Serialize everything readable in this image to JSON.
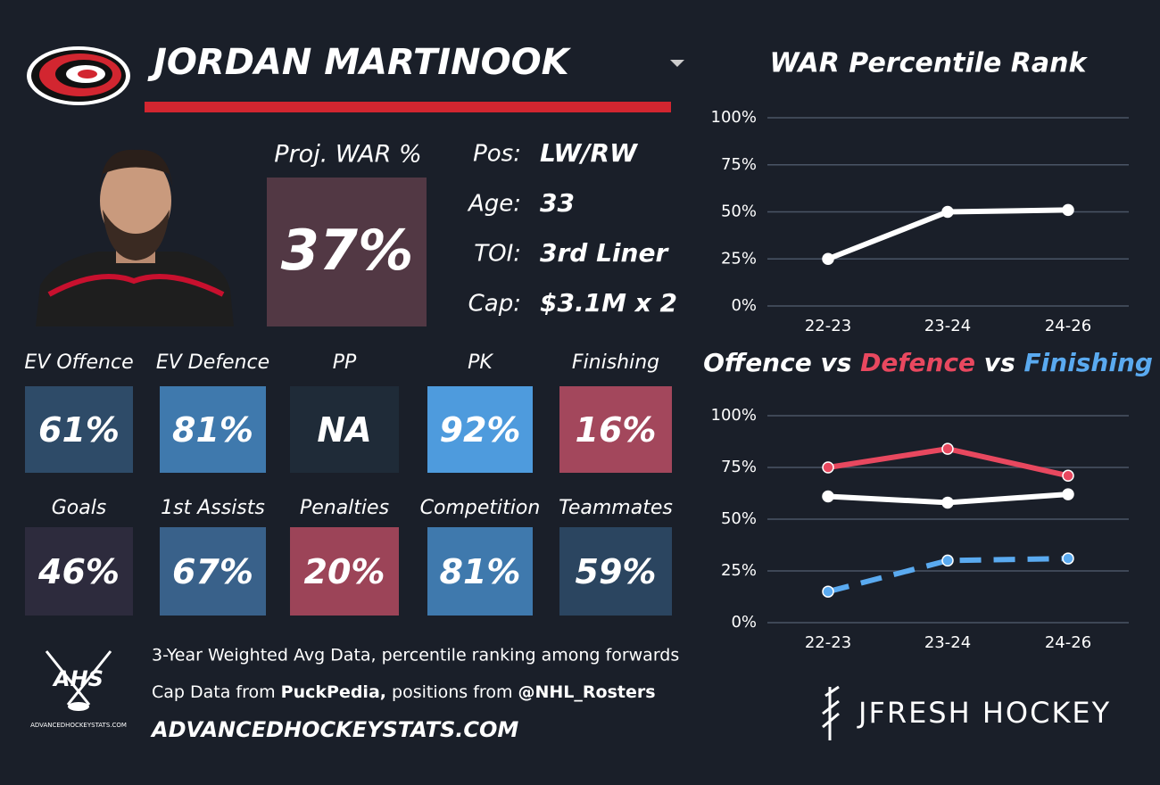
{
  "header": {
    "name": "JORDAN MARTINOOK"
  },
  "summary": {
    "proj_war_label": "Proj. WAR %",
    "proj_war": "37%",
    "proj_war_color": "#523844"
  },
  "info": [
    {
      "label": "Pos:",
      "value": "LW/RW"
    },
    {
      "label": "Age:",
      "value": "33"
    },
    {
      "label": "TOI:",
      "value": "3rd Liner"
    },
    {
      "label": "Cap:",
      "value": "$3.1M x 2"
    }
  ],
  "tiles": [
    {
      "label": "EV Offence",
      "value": "61%",
      "color": "#2e4b68"
    },
    {
      "label": "EV Defence",
      "value": "81%",
      "color": "#3f79ad"
    },
    {
      "label": "PP",
      "value": "NA",
      "color": "#1f2b38"
    },
    {
      "label": "PK",
      "value": "92%",
      "color": "#4e9bdd"
    },
    {
      "label": "Finishing",
      "value": "16%",
      "color": "#a3475c"
    },
    {
      "label": "Goals",
      "value": "46%",
      "color": "#2d2b3d"
    },
    {
      "label": "1st Assists",
      "value": "67%",
      "color": "#39618a"
    },
    {
      "label": "Penalties",
      "value": "20%",
      "color": "#9c4458"
    },
    {
      "label": "Competition",
      "value": "81%",
      "color": "#3f79ad"
    },
    {
      "label": "Teammates",
      "value": "59%",
      "color": "#2b4560"
    }
  ],
  "footer": {
    "line1": "3-Year Weighted Avg Data, percentile ranking among forwards",
    "line2": [
      "Cap Data from ",
      "PuckPedia,",
      " positions from ",
      "@NHL_Rosters"
    ],
    "website": "ADVANCEDHOCKEYSTATS.COM",
    "ahs_logo": "AHS",
    "ahs_caption": "ADVANCEDHOCKEYSTATS.COM",
    "brand": "JFRESH HOCKEY"
  },
  "chart_data": [
    {
      "type": "line",
      "title": "WAR Percentile Rank",
      "categories": [
        "22-23",
        "23-24",
        "24-26"
      ],
      "values": [
        25,
        50,
        51
      ],
      "color": "#ffffff",
      "ylim": [
        0,
        100
      ],
      "yticks": [
        {
          "value": 0,
          "label": "0%"
        },
        {
          "value": 25,
          "label": "25%"
        },
        {
          "value": 50,
          "label": "50%"
        },
        {
          "value": 75,
          "label": "75%"
        },
        {
          "value": 100,
          "label": "100%"
        }
      ],
      "grid": true
    },
    {
      "type": "line",
      "title_separator": "vs",
      "categories": [
        "22-23",
        "23-24",
        "24-26"
      ],
      "series": [
        {
          "name": "Offence",
          "color": "#ffffff",
          "values": [
            61,
            58,
            62
          ]
        },
        {
          "name": "Defence",
          "color": "#e8485f",
          "values": [
            75,
            84,
            71
          ]
        },
        {
          "name": "Finishing",
          "color": "#5aaaf0",
          "values": [
            15,
            30,
            31
          ],
          "dashed": true
        }
      ],
      "ylim": [
        0,
        100
      ],
      "yticks": [
        {
          "value": 0,
          "label": "0%"
        },
        {
          "value": 25,
          "label": "25%"
        },
        {
          "value": 50,
          "label": "50%"
        },
        {
          "value": 75,
          "label": "75%"
        },
        {
          "value": 100,
          "label": "100%"
        }
      ],
      "grid": true
    }
  ]
}
